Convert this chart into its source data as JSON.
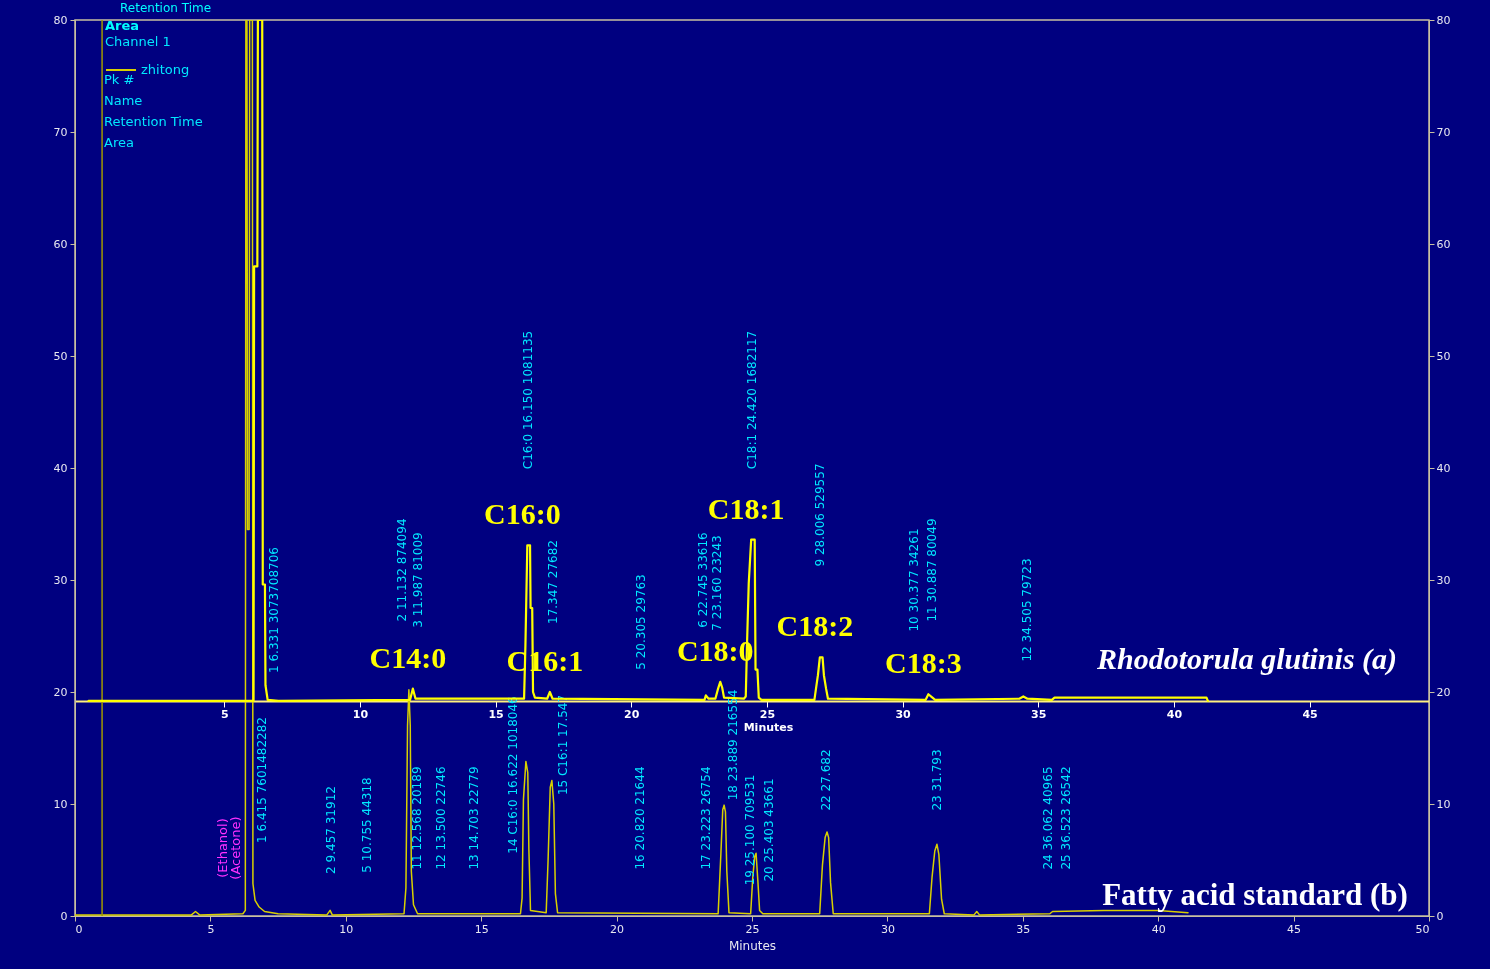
{
  "chart_data": {
    "type": "line",
    "xlabel": "Minutes",
    "x2label": "Minutes",
    "legend_title": "Channel 1",
    "legend": "top left",
    "xlim": [
      0,
      50
    ],
    "xticks": [
      0,
      5,
      10,
      15,
      20,
      25,
      30,
      35,
      40,
      45,
      50
    ],
    "x2lim": [
      -0.5,
      49.4
    ],
    "x2ticks": [
      5,
      10,
      15,
      20,
      25,
      30,
      35,
      40,
      45
    ],
    "ylim": [
      0,
      80
    ],
    "yticks": [
      0,
      10,
      20,
      30,
      40,
      50,
      60,
      70,
      80
    ],
    "y2lim": [
      0,
      80
    ],
    "y2ticks": [
      0,
      10,
      20,
      30,
      40,
      50,
      60,
      70,
      80
    ],
    "series": [
      {
        "name": "zhitong",
        "color": "#d8d000",
        "x": [
          0,
          4.3,
          4.45,
          4.6,
          6.2,
          6.29,
          6.31,
          6.35,
          6.37,
          6.43,
          6.45,
          6.55,
          6.57,
          6.65,
          6.8,
          7.0,
          7.5,
          9.3,
          9.42,
          9.5,
          12.15,
          12.22,
          12.28,
          12.33,
          12.38,
          12.42,
          12.5,
          12.65,
          16.45,
          16.51,
          16.56,
          16.65,
          16.72,
          16.76,
          16.82,
          17.4,
          17.47,
          17.55,
          17.61,
          17.68,
          17.74,
          17.82,
          23.75,
          23.85,
          23.92,
          23.97,
          24.02,
          24.07,
          24.15,
          24.95,
          25.03,
          25.1,
          25.15,
          25.22,
          25.28,
          25.4,
          27.5,
          27.6,
          27.7,
          27.77,
          27.83,
          27.9,
          28.0,
          31.55,
          31.65,
          31.75,
          31.83,
          31.9,
          32.0,
          32.1,
          33.2,
          33.3,
          33.4,
          36.0,
          36.1,
          38.0,
          40.0,
          41.1
        ],
        "values": [
          0.1,
          0.1,
          0.4,
          0.1,
          0.2,
          0.5,
          80,
          80,
          34.5,
          34.5,
          80,
          80,
          2.9,
          1.4,
          0.8,
          0.4,
          0.2,
          0.1,
          0.5,
          0.1,
          0.2,
          2.5,
          17.0,
          20.2,
          17.0,
          4.0,
          1.0,
          0.2,
          0.2,
          1.6,
          10.4,
          13.8,
          12.8,
          6.0,
          0.5,
          0.3,
          5.0,
          11.5,
          12.1,
          10.0,
          2.0,
          0.3,
          0.2,
          5.5,
          9.5,
          9.9,
          9.3,
          4.0,
          0.3,
          0.2,
          3.5,
          5.3,
          5.6,
          3.0,
          0.5,
          0.2,
          0.2,
          4.5,
          7.0,
          7.5,
          7.0,
          3.0,
          0.2,
          0.2,
          3.5,
          5.8,
          6.4,
          5.5,
          1.5,
          0.2,
          0.1,
          0.4,
          0.1,
          0.2,
          0.4,
          0.5,
          0.5,
          0.3
        ]
      },
      {
        "color": "#ffff00",
        "axis": "x2",
        "x": [
          0,
          5.9,
          6.08,
          6.1,
          6.22,
          6.24,
          6.4,
          6.42,
          6.5,
          6.52,
          6.6,
          7.0,
          11.85,
          11.95,
          12.05,
          16.05,
          16.1,
          16.17,
          16.27,
          16.29,
          16.35,
          16.38,
          16.45,
          16.9,
          17.0,
          17.1,
          22.7,
          22.75,
          22.85,
          23.1,
          23.2,
          23.28,
          23.35,
          23.42,
          24.15,
          24.22,
          24.27,
          24.33,
          24.42,
          24.55,
          24.58,
          24.65,
          24.7,
          24.8,
          26.75,
          26.82,
          26.88,
          26.95,
          27.05,
          27.1,
          27.18,
          27.25,
          30.85,
          30.95,
          31.1,
          31.2,
          34.3,
          34.45,
          34.6,
          35.5,
          35.6,
          41.2,
          41.25
        ],
        "values": [
          19.2,
          19.2,
          19.2,
          58,
          58,
          80,
          80,
          29.6,
          29.6,
          20.6,
          19.3,
          19.2,
          19.3,
          20.3,
          19.4,
          19.4,
          24.2,
          33.1,
          33.1,
          27.5,
          27.5,
          20.0,
          19.5,
          19.4,
          20.0,
          19.4,
          19.3,
          19.7,
          19.4,
          19.4,
          20.3,
          20.9,
          20.4,
          19.5,
          19.4,
          19.6,
          24.6,
          29.7,
          33.6,
          33.6,
          22.0,
          22.0,
          19.5,
          19.3,
          19.3,
          20.5,
          21.5,
          23.1,
          23.1,
          21.5,
          20.3,
          19.4,
          19.3,
          19.8,
          19.5,
          19.3,
          19.4,
          19.6,
          19.4,
          19.3,
          19.5,
          19.5,
          19.2
        ],
        "value_labels": [
          null,
          null,
          null,
          null,
          null,
          null,
          null,
          null,
          null,
          null,
          null,
          null,
          null,
          "C14:0",
          null,
          null,
          null,
          "C16:0",
          null,
          null,
          null,
          null,
          null,
          null,
          "C16:1",
          null,
          null,
          null,
          null,
          null,
          null,
          "C18:0",
          null,
          null,
          null,
          null,
          null,
          null,
          "C18:1",
          null,
          null,
          null,
          null,
          null,
          null,
          null,
          null,
          "C18:2",
          null,
          null,
          null,
          null,
          null,
          "C18:3",
          null,
          null,
          null,
          null,
          null,
          null,
          null,
          null,
          null
        ]
      }
    ],
    "ref_lines": [
      {
        "axis": "x",
        "value": 1.0,
        "color": "#a09800"
      }
    ],
    "annotations": [
      "Retention Time",
      "Area",
      "Pk #",
      "Name",
      "Retention Time",
      "Area",
      "Rhodotorula glutinis (a)",
      "Fatty acid standard (b)",
      "(Ethanol)",
      "(Acetone)",
      "1 6.331 3073708706",
      "2 11.132 874094",
      "3 11.987 81009",
      "C16:0 16.150 1081135",
      "17.347 27682",
      "5 20.305 29763",
      "6 22.745 33616",
      "7 23.160 23243",
      "C18:1 24.420 1682117",
      "9 28.006 529557",
      "10 30.377 34261",
      "11 30.887 80049",
      "12 34.505 79723",
      "1 6.415 7601482282",
      "2 9.457 31912",
      "5 10.755 44318",
      "11 12.568 20189",
      "12 13.500 22746",
      "13 14.703 22779",
      "14 C16:0 16.622 1018046",
      "15 C16:1 17.547",
      "16 20.820 21644",
      "17 23.223 26754",
      "18 23.889 216554",
      "19 25.100 709531",
      "20 25.403 43661",
      "22 27.682",
      "23 31.793",
      "24 36.062 40965",
      "25 36.523 26542"
    ]
  }
}
